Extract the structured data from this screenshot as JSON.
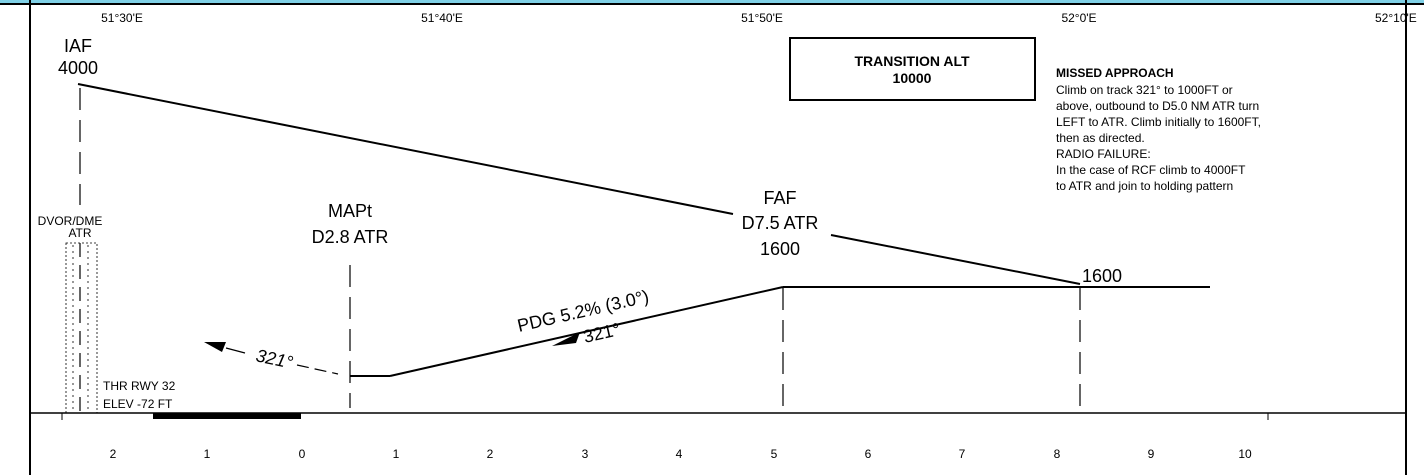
{
  "longitude_labels": [
    "51°30'E",
    "51°40'E",
    "51°50'E",
    "52°0'E",
    "52°10'E"
  ],
  "iaf": {
    "name": "IAF",
    "altitude": "4000"
  },
  "transition_alt": {
    "label": "TRANSITION ALT",
    "value": "10000"
  },
  "missed_approach": {
    "title": "MISSED APPROACH",
    "lines": [
      "Climb on track 321° to 1000FT or",
      "above, outbound to D5.0 NM ATR turn",
      "LEFT to ATR. Climb initially to 1600FT,",
      "then as directed.",
      "RADIO FAILURE:",
      "In the case of RCF climb to 4000FT",
      "to ATR and join to holding pattern"
    ]
  },
  "navaid": {
    "type": "DVOR/DME",
    "ident": "ATR"
  },
  "mapt": {
    "name": "MAPt",
    "distance": "D2.8 ATR"
  },
  "faf": {
    "name": "FAF",
    "distance": "D7.5 ATR",
    "altitude": "1600"
  },
  "if_altitude": "1600",
  "pdg_label": "PDG 5.2% (3.0°)",
  "final_track": "321°",
  "missed_track": "321°",
  "threshold": {
    "line1": "THR RWY 32",
    "line2": "ELEV  -72 FT"
  },
  "distance_scale": [
    "2",
    "1",
    "0",
    "1",
    "2",
    "3",
    "4",
    "5",
    "6",
    "7",
    "8",
    "9",
    "10"
  ]
}
